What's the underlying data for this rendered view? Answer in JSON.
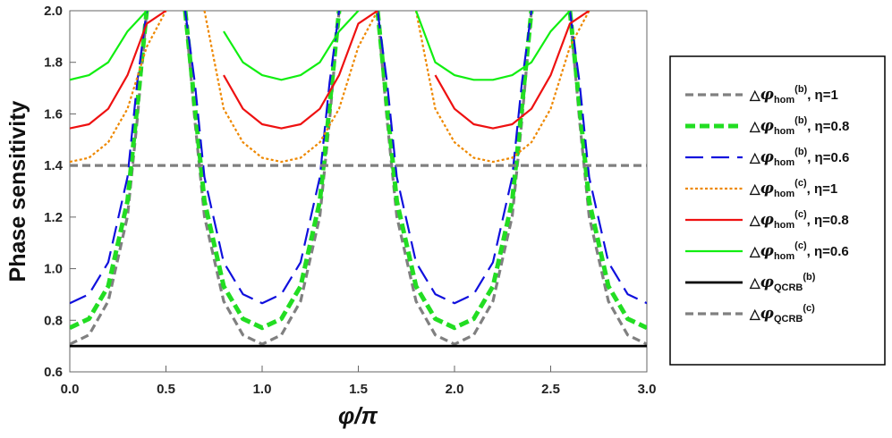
{
  "chart_data": {
    "type": "line",
    "xlabel": "φ/π",
    "ylabel": "Phase sensitivity",
    "xlim": [
      0,
      3
    ],
    "ylim": [
      0.6,
      2.0
    ],
    "x_ticks": [
      0.0,
      0.5,
      1.0,
      1.5,
      2.0,
      2.5,
      3.0
    ],
    "x_tick_labels": [
      "0.0",
      "0.5",
      "1.0",
      "1.5",
      "2.0",
      "2.5",
      "3.0"
    ],
    "y_ticks": [
      0.6,
      0.8,
      1.0,
      1.2,
      1.4,
      1.6,
      1.8,
      2.0
    ],
    "y_tick_labels": [
      "0.6",
      "0.8",
      "1.0",
      "1.2",
      "1.4",
      "1.6",
      "1.8",
      "2.0"
    ],
    "legend_position": "right",
    "series": [
      {
        "name": "△φhom(b), η=1",
        "legend": {
          "delta": "△",
          "var": "φ",
          "sub": "hom",
          "sup": "(b)",
          "tail": ", η=1"
        },
        "color": "#808080",
        "style": "dashed-medium",
        "x": [
          0.0,
          0.1,
          0.2,
          0.3,
          0.35,
          0.4,
          0.5,
          0.6,
          0.65,
          0.7,
          0.8,
          0.9,
          1.0,
          1.1,
          1.2,
          1.3,
          1.35,
          1.4,
          1.5,
          1.6,
          1.65,
          1.7,
          1.8,
          1.9,
          2.0,
          2.1,
          2.2,
          2.3,
          2.35,
          2.4,
          2.5,
          2.6,
          2.65,
          2.7,
          2.8,
          2.9,
          3.0
        ],
        "y": [
          0.707,
          0.743,
          0.874,
          1.203,
          1.574,
          2.0,
          null,
          2.0,
          1.574,
          1.203,
          0.874,
          0.743,
          0.707,
          0.743,
          0.874,
          1.203,
          1.574,
          2.0,
          null,
          2.0,
          1.574,
          1.203,
          0.874,
          0.743,
          0.707,
          0.743,
          0.874,
          1.203,
          1.574,
          2.0,
          null,
          2.0,
          1.574,
          1.203,
          0.874,
          0.743,
          0.707
        ]
      },
      {
        "name": "△φhom(b), η=0.8",
        "legend": {
          "delta": "△",
          "var": "φ",
          "sub": "hom",
          "sup": "(b)",
          "tail": ", η=0.8"
        },
        "color": "#22dd22",
        "style": "dashed-thick",
        "x": [
          0.0,
          0.1,
          0.2,
          0.3,
          0.35,
          0.4,
          0.5,
          0.6,
          0.65,
          0.7,
          0.8,
          0.9,
          1.0,
          1.1,
          1.2,
          1.3,
          1.35,
          1.4,
          1.5,
          1.6,
          1.65,
          1.7,
          1.8,
          1.9,
          2.0,
          2.1,
          2.2,
          2.3,
          2.35,
          2.4,
          2.5,
          2.6,
          2.65,
          2.7,
          2.8,
          2.9,
          3.0
        ],
        "y": [
          0.771,
          0.806,
          0.932,
          1.262,
          1.628,
          2.0,
          null,
          2.0,
          1.628,
          1.262,
          0.932,
          0.806,
          0.771,
          0.806,
          0.932,
          1.262,
          1.628,
          2.0,
          null,
          2.0,
          1.628,
          1.262,
          0.932,
          0.806,
          0.771,
          0.806,
          0.932,
          1.262,
          1.628,
          2.0,
          null,
          2.0,
          1.628,
          1.262,
          0.932,
          0.806,
          0.771
        ]
      },
      {
        "name": "△φhom(b), η=0.6",
        "legend": {
          "delta": "△",
          "var": "φ",
          "sub": "hom",
          "sup": "(b)",
          "tail": ", η=0.6"
        },
        "color": "#1010dd",
        "style": "dashed-long",
        "x": [
          0.0,
          0.1,
          0.2,
          0.3,
          0.35,
          0.4,
          0.5,
          0.6,
          0.65,
          0.7,
          0.8,
          0.9,
          1.0,
          1.1,
          1.2,
          1.3,
          1.35,
          1.4,
          1.5,
          1.6,
          1.65,
          1.7,
          1.8,
          1.9,
          2.0,
          2.1,
          2.2,
          2.3,
          2.35,
          2.4,
          2.5,
          2.6,
          2.65,
          2.7,
          2.8,
          2.9,
          3.0
        ],
        "y": [
          0.866,
          0.901,
          1.025,
          1.355,
          1.72,
          2.0,
          null,
          2.0,
          1.72,
          1.355,
          1.025,
          0.901,
          0.866,
          0.901,
          1.025,
          1.355,
          1.72,
          2.0,
          null,
          2.0,
          1.72,
          1.355,
          1.025,
          0.901,
          0.866,
          0.901,
          1.025,
          1.355,
          1.72,
          2.0,
          null,
          2.0,
          1.72,
          1.355,
          1.025,
          0.901,
          0.866
        ]
      },
      {
        "name": "△φhom(c), η=1",
        "legend": {
          "delta": "△",
          "var": "φ",
          "sub": "hom",
          "sup": "(c)",
          "tail": ", η=1"
        },
        "color": "#ee8800",
        "style": "dotted",
        "x": [
          0.0,
          0.1,
          0.2,
          0.3,
          0.4,
          0.5,
          0.6,
          0.7,
          0.8,
          0.9,
          1.0,
          1.1,
          1.2,
          1.3,
          1.4,
          1.5,
          1.6,
          1.7,
          1.8,
          1.9,
          2.0,
          2.1,
          2.2,
          2.3,
          2.4,
          2.5,
          2.6,
          2.7,
          2.8,
          2.9,
          3.0
        ],
        "y": [
          1.414,
          1.43,
          1.49,
          1.62,
          1.86,
          2.0,
          null,
          2.0,
          1.62,
          1.49,
          1.43,
          1.414,
          1.43,
          1.49,
          1.62,
          1.86,
          2.0,
          null,
          2.0,
          1.62,
          1.49,
          1.43,
          1.414,
          1.43,
          1.49,
          1.62,
          1.86,
          2.0,
          null,
          null,
          null
        ]
      },
      {
        "name": "△φhom(c), η=0.8",
        "legend": {
          "delta": "△",
          "var": "φ",
          "sub": "hom",
          "sup": "(c)",
          "tail": ", η=0.8"
        },
        "color": "#ee1111",
        "style": "solid",
        "x": [
          0.0,
          0.1,
          0.2,
          0.3,
          0.4,
          0.5,
          0.6,
          0.7,
          0.8,
          0.9,
          1.0,
          1.1,
          1.2,
          1.3,
          1.4,
          1.5,
          1.6,
          1.7,
          1.8,
          1.9,
          2.0,
          2.1,
          2.2,
          2.3,
          2.4,
          2.5,
          2.6,
          2.7,
          2.8,
          2.9,
          3.0
        ],
        "y": [
          1.544,
          1.56,
          1.62,
          1.75,
          1.95,
          2.0,
          null,
          null,
          1.75,
          1.62,
          1.56,
          1.544,
          1.56,
          1.62,
          1.75,
          1.95,
          2.0,
          null,
          null,
          1.75,
          1.62,
          1.56,
          1.544,
          1.56,
          1.62,
          1.75,
          1.95,
          2.0,
          null,
          null,
          null
        ]
      },
      {
        "name": "△φhom(c), η=0.6",
        "legend": {
          "delta": "△",
          "var": "φ",
          "sub": "hom",
          "sup": "(c)",
          "tail": ", η=0.6"
        },
        "color": "#11ee11",
        "style": "solid",
        "x": [
          0.0,
          0.1,
          0.2,
          0.3,
          0.4,
          0.5,
          0.6,
          0.7,
          0.8,
          0.9,
          1.0,
          1.1,
          1.2,
          1.3,
          1.4,
          1.5,
          1.6,
          1.7,
          1.8,
          1.9,
          2.0,
          2.1,
          2.2,
          2.3,
          2.4,
          2.5,
          2.6,
          2.7,
          2.8,
          2.9,
          3.0
        ],
        "y": [
          1.732,
          1.75,
          1.8,
          1.92,
          2.0,
          null,
          null,
          null,
          1.92,
          1.8,
          1.75,
          1.732,
          1.75,
          1.8,
          1.92,
          2.0,
          null,
          null,
          2.0,
          1.8,
          1.75,
          1.732,
          1.732,
          1.75,
          1.8,
          1.92,
          2.0,
          null,
          null,
          null,
          null
        ]
      },
      {
        "name": "△φQCRB(b)",
        "legend": {
          "delta": "△",
          "var": "φ",
          "sub": "QCRB",
          "sup": "(b)",
          "tail": ""
        },
        "color": "#000000",
        "style": "solid-thick",
        "x": [
          0.0,
          3.0
        ],
        "y": [
          0.7,
          0.7
        ]
      },
      {
        "name": "△φQCRB(c)",
        "legend": {
          "delta": "△",
          "var": "φ",
          "sub": "QCRB",
          "sup": "(c)",
          "tail": ""
        },
        "color": "#808080",
        "style": "dashed-medium",
        "x": [
          0.0,
          3.0
        ],
        "y": [
          1.4,
          1.4
        ]
      }
    ]
  }
}
